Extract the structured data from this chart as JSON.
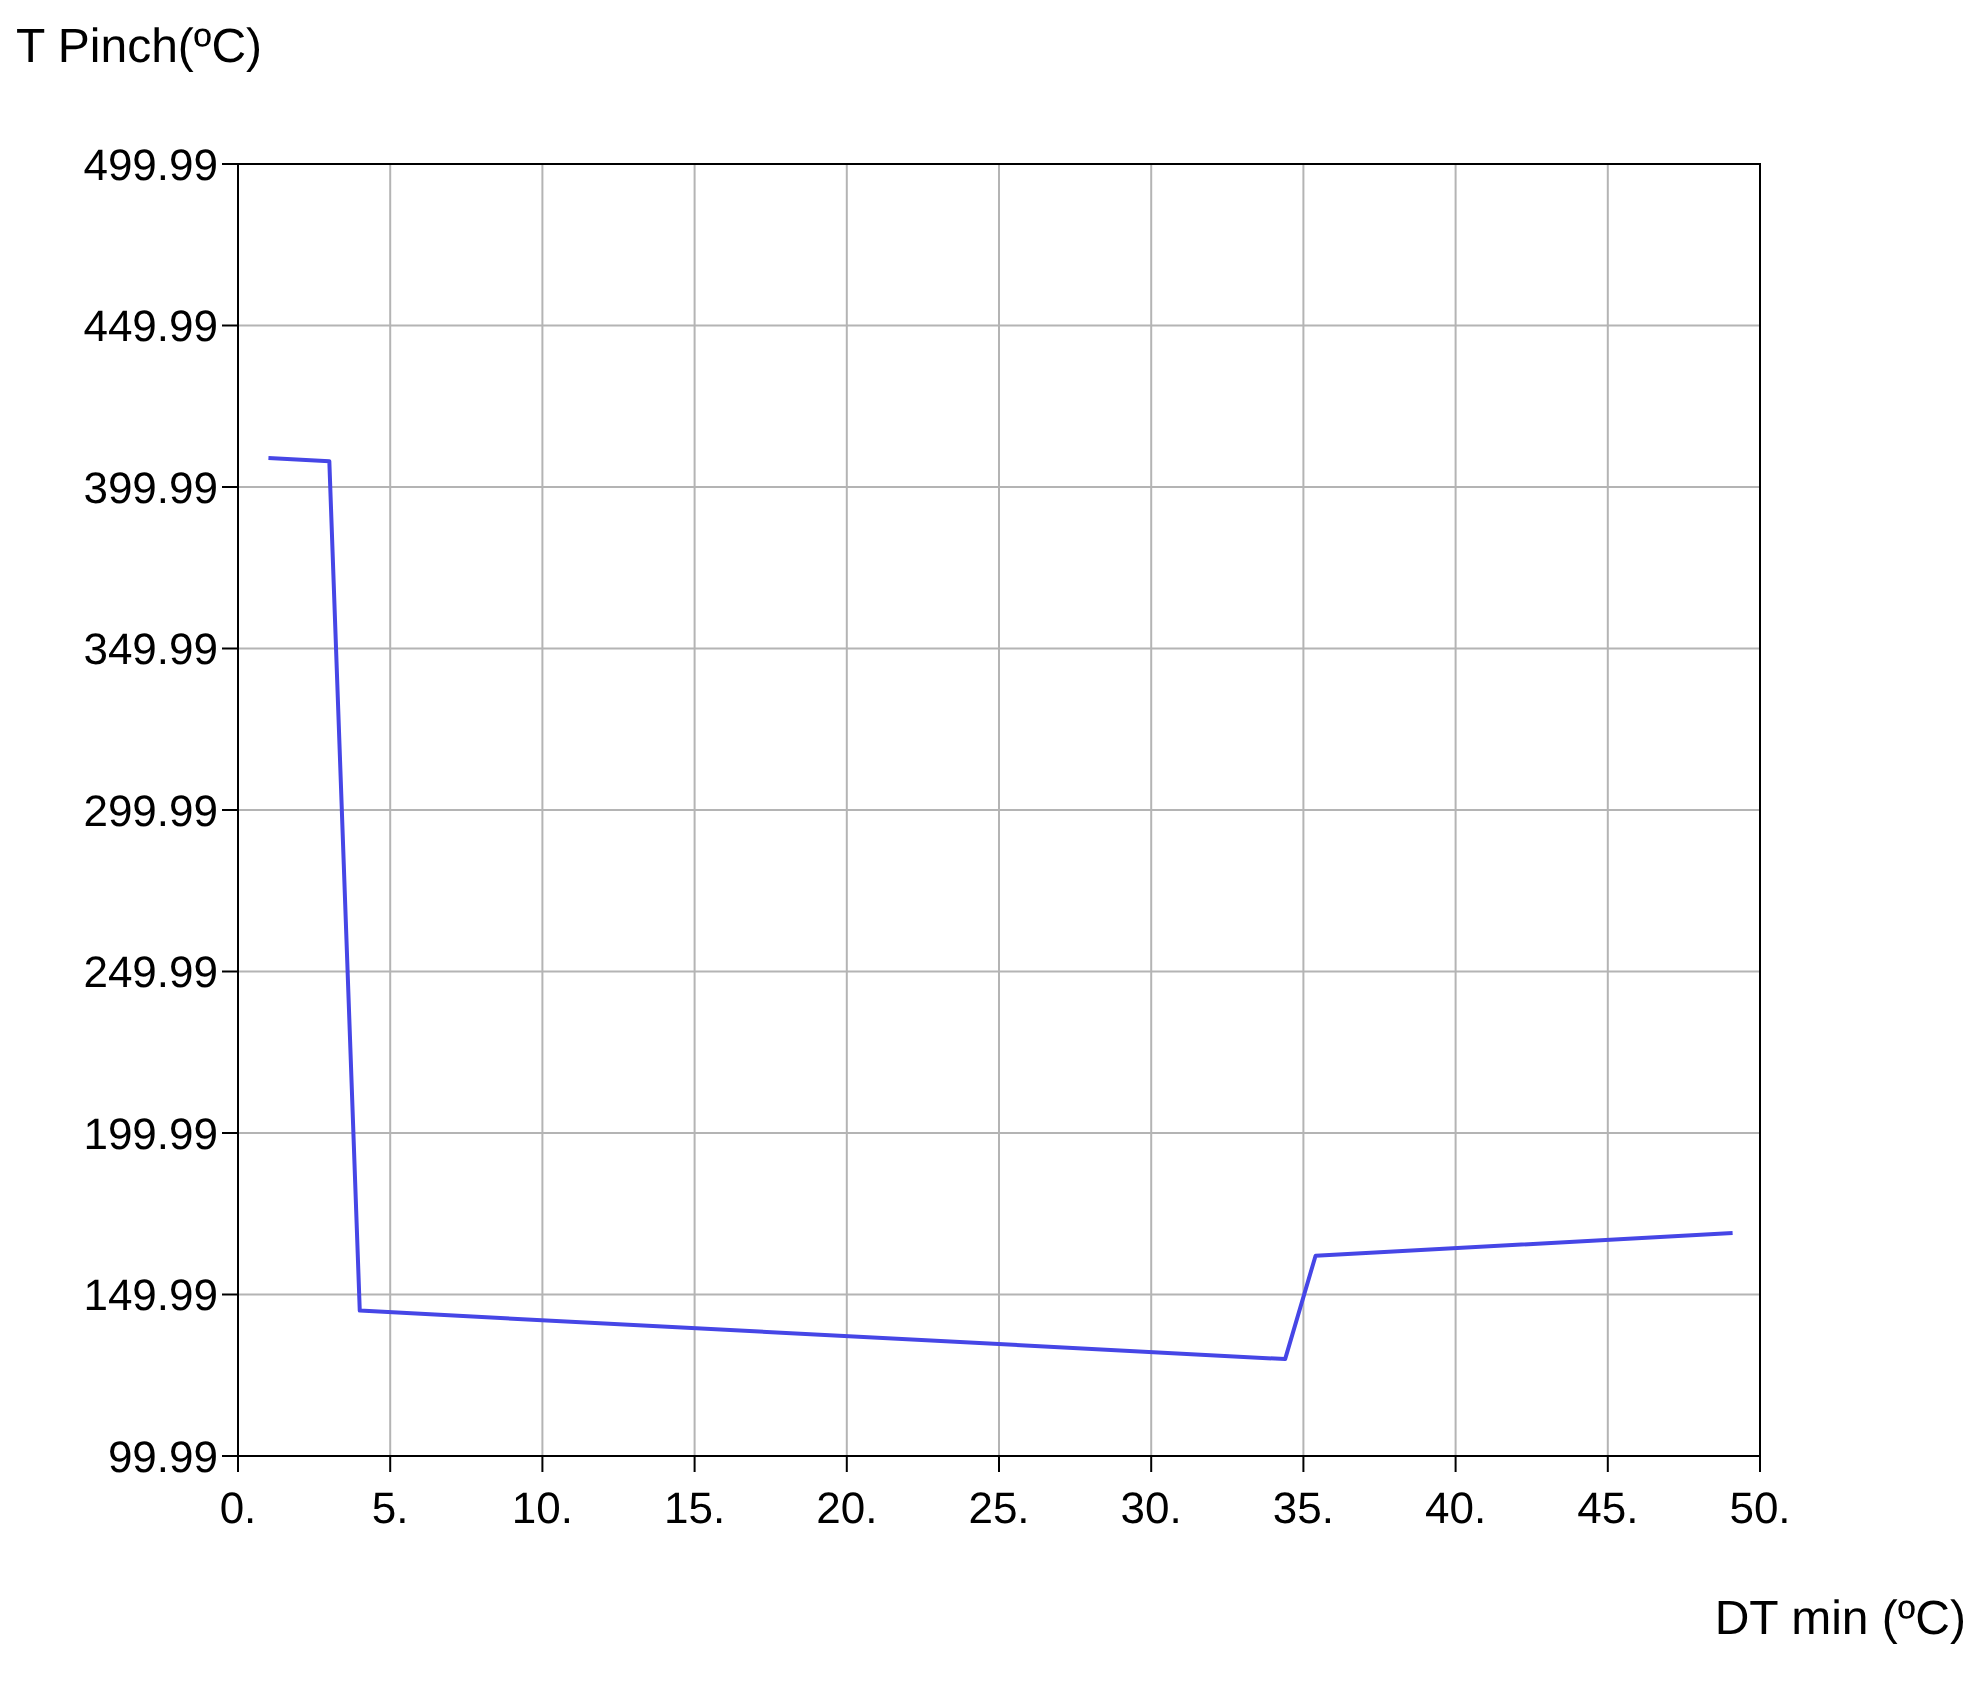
{
  "chart_data": {
    "type": "line",
    "xlabel": "DT min (ºC)",
    "ylabel": "T Pinch(ºC)",
    "series": [
      {
        "color": "#4646e6",
        "x": [
          1,
          3,
          4,
          34.4,
          35.4,
          49.1
        ],
        "values": [
          409,
          408,
          145,
          130,
          162,
          169
        ]
      }
    ],
    "xlim": [
      0,
      50
    ],
    "xticks": [
      {
        "value": 0,
        "label": "0."
      },
      {
        "value": 5,
        "label": "5."
      },
      {
        "value": 10,
        "label": "10."
      },
      {
        "value": 15,
        "label": "15."
      },
      {
        "value": 20,
        "label": "20."
      },
      {
        "value": 25,
        "label": "25."
      },
      {
        "value": 30,
        "label": "30."
      },
      {
        "value": 35,
        "label": "35."
      },
      {
        "value": 40,
        "label": "40."
      },
      {
        "value": 45,
        "label": "45."
      },
      {
        "value": 50,
        "label": "50."
      }
    ],
    "ylim": [
      99.99,
      499.99
    ],
    "yticks": [
      99.99,
      149.99,
      199.99,
      249.99,
      299.99,
      349.99,
      399.99,
      449.99,
      499.99
    ],
    "grid": true,
    "marker": "none",
    "line_style": "solid",
    "legend": false
  }
}
